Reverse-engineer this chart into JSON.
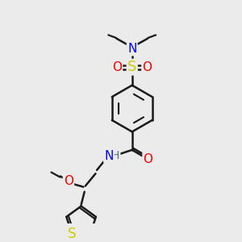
{
  "bg_color": "#ebebeb",
  "bond_color": "#1a1a1a",
  "bond_width": 1.8,
  "atom_colors": {
    "N": "#0000ee",
    "O": "#ee0000",
    "S": "#cccc00",
    "H": "#557777",
    "C": "#1a1a1a"
  },
  "font_size": 11
}
